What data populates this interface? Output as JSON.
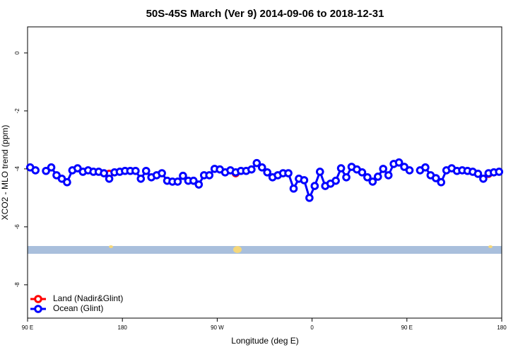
{
  "chart_data": {
    "type": "line",
    "title": "50S-45S March (Ver 9)   2014-09-06 to 2018-12-31",
    "x_label": "Longitude (deg E)",
    "y_label": "XCO2 - MLO trend (ppm)",
    "x": [
      92.5,
      97.5,
      102.5,
      107.5,
      112.5,
      117.5,
      122.5,
      127.5,
      132.5,
      137.5,
      142.5,
      147.5,
      152.5,
      157.5,
      162.5,
      167.5,
      172.5,
      177.5,
      182.5,
      187.5,
      192.5,
      197.5,
      202.5,
      207.5,
      212.5,
      217.5,
      222.5,
      227.5,
      232.5,
      237.5,
      242.5,
      247.5,
      252.5,
      257.5,
      262.5,
      267.5,
      272.5,
      277.5,
      282.5,
      287.5,
      292.5,
      297.5,
      302.5,
      307.5,
      312.5,
      317.5,
      322.5,
      327.5,
      332.5,
      337.5,
      342.5,
      347.5,
      352.5,
      357.5,
      362.5,
      367.5,
      372.5,
      377.5,
      382.5,
      387.5,
      392.5,
      397.5,
      402.5,
      407.5,
      412.5,
      417.5,
      422.5,
      427.5,
      432.5,
      437.5,
      442.5,
      447.5,
      452.5,
      457.5,
      462.5,
      467.5,
      472.5,
      477.5,
      482.5,
      487.5,
      492.5,
      497.5,
      502.5,
      507.5,
      512.5,
      517.5,
      522.5,
      527.5,
      532.5,
      537.5
    ],
    "series": [
      {
        "name": "Land (Nadir&Glint)",
        "color": "#ff0000",
        "values": [
          null,
          null,
          null,
          null,
          null,
          null,
          null,
          null,
          null,
          null,
          null,
          null,
          null,
          null,
          null,
          -4.17,
          null,
          null,
          null,
          null,
          null,
          null,
          null,
          null,
          null,
          null,
          null,
          null,
          null,
          null,
          null,
          null,
          null,
          null,
          null,
          null,
          null,
          null,
          null,
          -4.15,
          null,
          null,
          null,
          null,
          null,
          null,
          null,
          null,
          null,
          null,
          null,
          null,
          null,
          null,
          null,
          null,
          null,
          null,
          null,
          null,
          null,
          null,
          null,
          null,
          null,
          null,
          null,
          null,
          null,
          null,
          null,
          null,
          null,
          null,
          null,
          null,
          null,
          null,
          null,
          null,
          null,
          null,
          null,
          null,
          null,
          null,
          null,
          -4.17,
          null,
          null
        ]
      },
      {
        "name": "Ocean (Glint)",
        "color": "#0000ff",
        "values": [
          -3.95,
          -4.05,
          null,
          -4.07,
          -3.95,
          -4.22,
          -4.34,
          -4.46,
          -4.05,
          -3.98,
          -4.1,
          -4.05,
          -4.1,
          -4.1,
          -4.15,
          -4.34,
          -4.12,
          -4.1,
          -4.07,
          -4.07,
          -4.07,
          -4.34,
          -4.07,
          -4.29,
          -4.22,
          -4.15,
          -4.41,
          -4.44,
          -4.44,
          -4.24,
          -4.41,
          -4.41,
          -4.54,
          -4.22,
          -4.22,
          -4.0,
          -4.02,
          -4.12,
          -4.05,
          -4.12,
          -4.07,
          -4.07,
          -4.02,
          -3.8,
          -3.95,
          -4.12,
          -4.29,
          -4.22,
          -4.15,
          -4.15,
          -4.68,
          -4.34,
          -4.39,
          -5.0,
          -4.59,
          -4.1,
          -4.59,
          -4.51,
          -4.41,
          -3.98,
          -4.29,
          -3.93,
          -4.02,
          -4.12,
          -4.29,
          -4.44,
          -4.27,
          -4.0,
          -4.22,
          -3.83,
          -3.78,
          -3.93,
          -4.05,
          null,
          -4.05,
          -3.95,
          -4.22,
          -4.32,
          -4.46,
          -4.05,
          -3.98,
          -4.07,
          -4.05,
          -4.07,
          -4.1,
          -4.17,
          -4.34,
          -4.15,
          -4.12,
          -4.1
        ]
      }
    ],
    "xlim": [
      90,
      540
    ],
    "xticks": [
      {
        "value": 90,
        "label": "90 E"
      },
      180,
      {
        "value": 270,
        "label": "90 W"
      },
      {
        "value": 360,
        "label": "0"
      },
      {
        "value": 450,
        "label": "90 E"
      },
      {
        "value": 540,
        "label": "180"
      }
    ],
    "ylim": [
      -9.15,
      0.9
    ],
    "yticks": [
      0,
      -2,
      -4,
      -6,
      -8
    ],
    "legend": "bottom-left"
  }
}
